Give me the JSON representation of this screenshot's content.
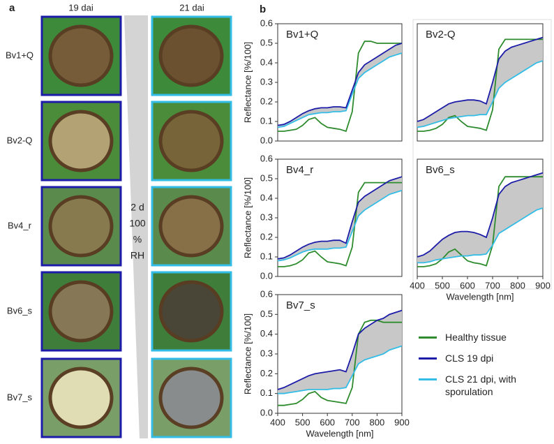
{
  "panel_a": {
    "label": "a",
    "col_left": "19 dai",
    "col_right": "21 dai",
    "rows": [
      "Bv1+Q",
      "Bv2-Q",
      "Bv4_r",
      "Bv6_s",
      "Bv7_s"
    ],
    "arrow_label": [
      "2 d",
      "100",
      "%",
      "RH"
    ]
  },
  "panel_b_label": "b",
  "legend": [
    {
      "name": "Healthy tissue",
      "color": "#2e8b2e"
    },
    {
      "name": "CLS  19 dpi",
      "color": "#1c1ca8"
    },
    {
      "name": "CLS  21 dpi, with sporulation",
      "color": "#33bde6"
    }
  ],
  "chart_data": [
    {
      "type": "line",
      "title": "Bv1+Q",
      "ylabel": "Reflectance  [%/100]",
      "x": [
        400,
        425,
        450,
        475,
        500,
        525,
        550,
        575,
        600,
        625,
        650,
        675,
        700,
        725,
        750,
        775,
        800,
        825,
        850,
        875,
        900
      ],
      "xlim": [
        400,
        900
      ],
      "ylim": [
        0,
        0.6
      ],
      "yticks": [
        {
          "value": 0,
          "label": "0.0"
        },
        0.1,
        0.2,
        0.3,
        0.4,
        0.5,
        0.6
      ],
      "series": [
        {
          "values": [
            0.05,
            0.05,
            0.055,
            0.06,
            0.08,
            0.11,
            0.12,
            0.09,
            0.07,
            0.065,
            0.06,
            0.05,
            0.15,
            0.45,
            0.51,
            0.51,
            0.5,
            0.5,
            0.5,
            0.5,
            0.5
          ]
        },
        {
          "values": [
            0.08,
            0.085,
            0.1,
            0.12,
            0.14,
            0.155,
            0.165,
            0.17,
            0.17,
            0.175,
            0.175,
            0.17,
            0.26,
            0.35,
            0.39,
            0.41,
            0.43,
            0.45,
            0.47,
            0.49,
            0.5
          ]
        },
        {
          "values": [
            0.07,
            0.075,
            0.09,
            0.105,
            0.12,
            0.135,
            0.14,
            0.145,
            0.145,
            0.15,
            0.15,
            0.155,
            0.24,
            0.32,
            0.35,
            0.37,
            0.39,
            0.41,
            0.43,
            0.44,
            0.45
          ]
        }
      ]
    },
    {
      "type": "line",
      "title": "Bv2-Q",
      "x": [
        400,
        425,
        450,
        475,
        500,
        525,
        550,
        575,
        600,
        625,
        650,
        675,
        700,
        725,
        750,
        775,
        800,
        825,
        850,
        875,
        900
      ],
      "xlim": [
        400,
        900
      ],
      "ylim": [
        0,
        0.6
      ],
      "series": [
        {
          "values": [
            0.05,
            0.05,
            0.055,
            0.065,
            0.085,
            0.12,
            0.13,
            0.1,
            0.075,
            0.07,
            0.065,
            0.055,
            0.16,
            0.47,
            0.52,
            0.52,
            0.52,
            0.52,
            0.52,
            0.52,
            0.52
          ]
        },
        {
          "values": [
            0.1,
            0.11,
            0.13,
            0.15,
            0.17,
            0.19,
            0.2,
            0.205,
            0.21,
            0.21,
            0.205,
            0.19,
            0.3,
            0.42,
            0.46,
            0.48,
            0.49,
            0.5,
            0.51,
            0.52,
            0.53
          ]
        },
        {
          "values": [
            0.07,
            0.075,
            0.085,
            0.095,
            0.105,
            0.115,
            0.12,
            0.125,
            0.13,
            0.13,
            0.135,
            0.135,
            0.2,
            0.27,
            0.3,
            0.32,
            0.34,
            0.36,
            0.38,
            0.4,
            0.41
          ]
        }
      ]
    },
    {
      "type": "line",
      "title": "Bv4_r",
      "ylabel": "Reflectance  [%/100]",
      "x": [
        400,
        425,
        450,
        475,
        500,
        525,
        550,
        575,
        600,
        625,
        650,
        675,
        700,
        725,
        750,
        775,
        800,
        825,
        850,
        875,
        900
      ],
      "xlim": [
        400,
        900
      ],
      "ylim": [
        0,
        0.6
      ],
      "yticks": [
        {
          "value": 0,
          "label": "0.0"
        },
        0.1,
        0.2,
        0.3,
        0.4,
        0.5,
        0.6
      ],
      "series": [
        {
          "values": [
            0.05,
            0.05,
            0.055,
            0.065,
            0.085,
            0.12,
            0.13,
            0.1,
            0.075,
            0.07,
            0.065,
            0.055,
            0.15,
            0.43,
            0.48,
            0.48,
            0.48,
            0.48,
            0.48,
            0.48,
            0.48
          ]
        },
        {
          "values": [
            0.09,
            0.095,
            0.11,
            0.13,
            0.15,
            0.165,
            0.175,
            0.18,
            0.18,
            0.185,
            0.185,
            0.17,
            0.28,
            0.38,
            0.41,
            0.43,
            0.45,
            0.47,
            0.49,
            0.5,
            0.51
          ]
        },
        {
          "values": [
            0.08,
            0.085,
            0.095,
            0.11,
            0.125,
            0.135,
            0.14,
            0.14,
            0.14,
            0.145,
            0.145,
            0.15,
            0.23,
            0.31,
            0.34,
            0.36,
            0.38,
            0.4,
            0.42,
            0.43,
            0.44
          ]
        }
      ]
    },
    {
      "type": "line",
      "title": "Bv6_s",
      "xlabel": "Wavelength [nm]",
      "x": [
        400,
        425,
        450,
        475,
        500,
        525,
        550,
        575,
        600,
        625,
        650,
        675,
        700,
        725,
        750,
        775,
        800,
        825,
        850,
        875,
        900
      ],
      "xlim": [
        400,
        900
      ],
      "ylim": [
        0,
        0.6
      ],
      "xticks": [
        400,
        500,
        600,
        700,
        800,
        900
      ],
      "series": [
        {
          "values": [
            0.05,
            0.05,
            0.055,
            0.065,
            0.09,
            0.125,
            0.14,
            0.11,
            0.08,
            0.07,
            0.065,
            0.055,
            0.16,
            0.46,
            0.51,
            0.51,
            0.51,
            0.51,
            0.51,
            0.51,
            0.51
          ]
        },
        {
          "values": [
            0.1,
            0.11,
            0.13,
            0.16,
            0.19,
            0.21,
            0.225,
            0.23,
            0.23,
            0.225,
            0.215,
            0.2,
            0.3,
            0.42,
            0.46,
            0.48,
            0.49,
            0.5,
            0.51,
            0.52,
            0.53
          ]
        },
        {
          "values": [
            0.07,
            0.07,
            0.075,
            0.085,
            0.09,
            0.095,
            0.1,
            0.105,
            0.105,
            0.11,
            0.11,
            0.115,
            0.16,
            0.22,
            0.24,
            0.26,
            0.28,
            0.3,
            0.32,
            0.34,
            0.35
          ]
        }
      ]
    },
    {
      "type": "line",
      "title": "Bv7_s",
      "ylabel": "Reflectance  [%/100]",
      "xlabel": "Wavelength [nm]",
      "x": [
        400,
        425,
        450,
        475,
        500,
        525,
        550,
        575,
        600,
        625,
        650,
        675,
        700,
        725,
        750,
        775,
        800,
        825,
        850,
        875,
        900
      ],
      "xlim": [
        400,
        900
      ],
      "ylim": [
        0,
        0.6
      ],
      "xticks": [
        400,
        500,
        600,
        700,
        800,
        900
      ],
      "yticks": [
        {
          "value": 0,
          "label": "0.0"
        },
        0.1,
        0.2,
        0.3,
        0.4,
        0.5,
        0.6
      ],
      "series": [
        {
          "values": [
            0.04,
            0.04,
            0.045,
            0.05,
            0.07,
            0.1,
            0.11,
            0.08,
            0.065,
            0.06,
            0.055,
            0.05,
            0.13,
            0.4,
            0.46,
            0.47,
            0.47,
            0.46,
            0.46,
            0.46,
            0.46
          ]
        },
        {
          "values": [
            0.12,
            0.13,
            0.145,
            0.16,
            0.175,
            0.19,
            0.2,
            0.205,
            0.21,
            0.215,
            0.22,
            0.21,
            0.3,
            0.4,
            0.43,
            0.45,
            0.47,
            0.48,
            0.5,
            0.51,
            0.52
          ]
        },
        {
          "values": [
            0.1,
            0.1,
            0.105,
            0.11,
            0.115,
            0.12,
            0.12,
            0.12,
            0.12,
            0.125,
            0.125,
            0.13,
            0.19,
            0.25,
            0.27,
            0.28,
            0.29,
            0.3,
            0.32,
            0.33,
            0.34
          ]
        }
      ]
    }
  ]
}
